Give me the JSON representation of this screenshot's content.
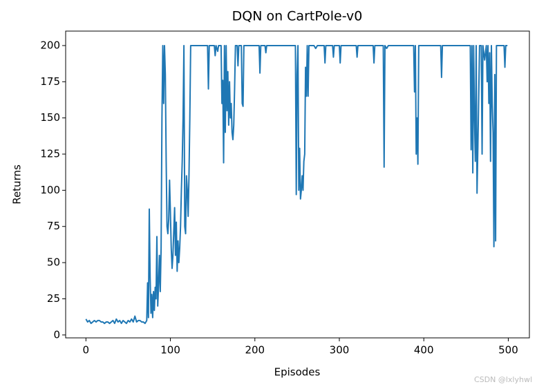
{
  "chart_data": {
    "type": "line",
    "title": "DQN on CartPole-v0",
    "xlabel": "Episodes",
    "ylabel": "Returns",
    "watermark": "CSDN @lxlyhwl",
    "xlim": [
      -24,
      525
    ],
    "ylim": [
      -2,
      210
    ],
    "xticks": [
      0,
      100,
      200,
      300,
      400,
      500
    ],
    "yticks": [
      0,
      25,
      50,
      75,
      100,
      125,
      150,
      175,
      200
    ],
    "series": [
      {
        "name": "Returns",
        "color": "#1f77b4",
        "x": [
          0,
          2,
          4,
          6,
          8,
          10,
          12,
          14,
          16,
          18,
          20,
          22,
          24,
          26,
          28,
          30,
          32,
          34,
          36,
          38,
          40,
          42,
          44,
          46,
          48,
          50,
          52,
          54,
          56,
          58,
          60,
          62,
          64,
          66,
          68,
          70,
          72,
          73,
          74,
          75,
          76,
          77,
          78,
          79,
          80,
          81,
          82,
          83,
          84,
          85,
          86,
          87,
          88,
          89,
          90,
          91,
          92,
          93,
          94,
          95,
          96,
          97,
          98,
          99,
          100,
          101,
          102,
          103,
          104,
          105,
          106,
          107,
          108,
          109,
          110,
          111,
          112,
          113,
          114,
          115,
          116,
          117,
          118,
          119,
          120,
          121,
          122,
          123,
          124,
          125,
          144,
          145,
          146,
          152,
          153,
          154,
          156,
          157,
          160,
          161,
          162,
          163,
          164,
          165,
          166,
          167,
          168,
          169,
          170,
          171,
          172,
          173,
          174,
          175,
          176,
          177,
          179,
          180,
          181,
          184,
          185,
          186,
          187,
          205,
          206,
          207,
          212,
          213,
          214,
          248,
          249,
          250,
          251,
          252,
          253,
          254,
          255,
          256,
          257,
          258,
          259,
          260,
          261,
          262,
          263,
          264,
          270,
          272,
          274,
          282,
          283,
          284,
          292,
          293,
          294,
          300,
          301,
          302,
          320,
          321,
          322,
          340,
          341,
          342,
          352,
          353,
          354,
          356,
          358,
          388,
          389,
          390,
          391,
          392,
          393,
          394,
          420,
          421,
          422,
          455,
          456,
          457,
          458,
          459,
          460,
          461,
          462,
          463,
          464,
          466,
          468,
          469,
          470,
          472,
          474,
          475,
          476,
          477,
          478,
          479,
          480,
          481,
          482,
          483,
          484,
          485,
          486,
          495,
          496,
          497,
          499
        ],
        "values": [
          11,
          9,
          10,
          8,
          9,
          10,
          9,
          10,
          10,
          9,
          9,
          8,
          9,
          9,
          8,
          9,
          10,
          8,
          11,
          9,
          10,
          8,
          10,
          9,
          8,
          10,
          9,
          11,
          9,
          13,
          9,
          10,
          10,
          9,
          9,
          8,
          10,
          36,
          12,
          87,
          40,
          15,
          28,
          12,
          30,
          17,
          33,
          25,
          68,
          20,
          35,
          55,
          30,
          60,
          150,
          200,
          160,
          200,
          180,
          120,
          75,
          70,
          80,
          107,
          85,
          60,
          46,
          55,
          72,
          88,
          55,
          78,
          44,
          65,
          50,
          60,
          75,
          100,
          120,
          150,
          200,
          75,
          70,
          110,
          100,
          82,
          110,
          150,
          200,
          200,
          200,
          170,
          200,
          200,
          193,
          200,
          196,
          200,
          200,
          160,
          176,
          119,
          200,
          140,
          200,
          155,
          182,
          145,
          175,
          150,
          160,
          140,
          135,
          145,
          170,
          200,
          200,
          186,
          200,
          200,
          160,
          158,
          200,
          200,
          181,
          200,
          200,
          195,
          200,
          200,
          97,
          180,
          200,
          100,
          129,
          94,
          100,
          110,
          100,
          120,
          125,
          185,
          165,
          200,
          165,
          200,
          200,
          198,
          200,
          200,
          188,
          200,
          200,
          192,
          200,
          200,
          188,
          200,
          200,
          192,
          200,
          200,
          188,
          200,
          200,
          116,
          200,
          198,
          200,
          200,
          168,
          200,
          125,
          150,
          118,
          200,
          200,
          178,
          200,
          200,
          128,
          200,
          112,
          200,
          150,
          120,
          200,
          98,
          130,
          200,
          200,
          125,
          200,
          190,
          200,
          175,
          200,
          160,
          195,
          120,
          200,
          160,
          140,
          61,
          180,
          65,
          200,
          200,
          185,
          200,
          200
        ]
      }
    ]
  }
}
